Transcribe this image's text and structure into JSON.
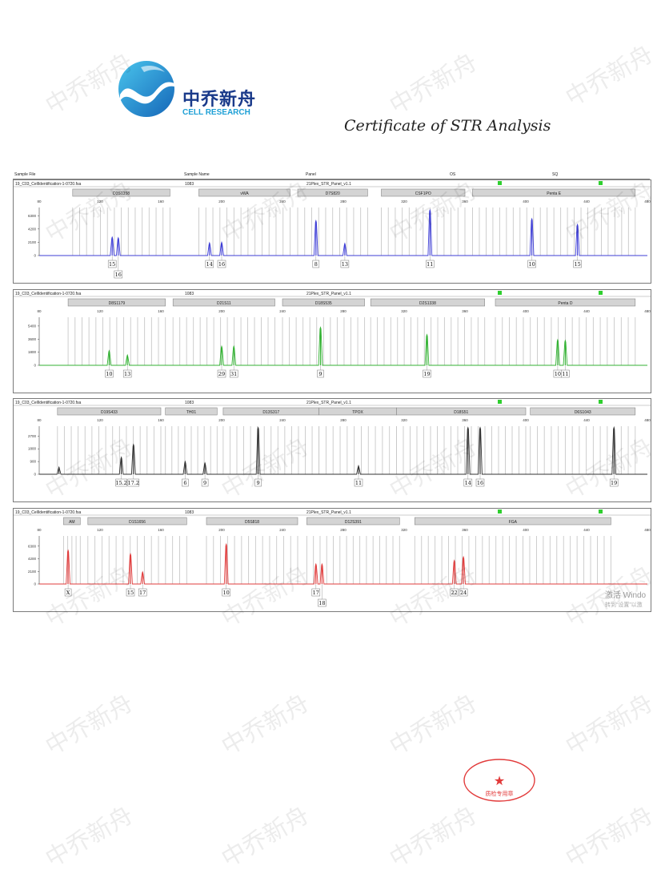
{
  "brand": {
    "name_cn": "中乔新舟",
    "name_en": "CELL RESEARCH"
  },
  "title": "Certificate of STR Analysis",
  "header": {
    "sample_file": "Sample File",
    "sample_name": "Sample Name",
    "panel": "Panel",
    "os": "OS",
    "sq": "SQ"
  },
  "watermark": "中乔新舟",
  "windows_notice": {
    "line1": "激活 Windo",
    "line2": "转到“设置”以激"
  },
  "seal_text": "质检专用章",
  "colors": {
    "blue": "#3f3fd6",
    "green": "#33b233",
    "black": "#333333",
    "red": "#e03c3c",
    "marker_gray": "#c8c8c8",
    "status_green": "#2fcf2f"
  },
  "chart_data": [
    {
      "type": "line",
      "dye": "blue",
      "sample_file": "19_C03_CellIdentification-1-0720.fsa",
      "sample_name": "1083",
      "panel": "21Plex_STR_Panel_v1.1",
      "xlim": [
        80,
        480
      ],
      "x_ticks": [
        "80",
        "120",
        "160",
        "200",
        "240",
        "280",
        "320",
        "360",
        "400",
        "440",
        "480"
      ],
      "y_ticks": [
        "0",
        "2100",
        "4200",
        "6300"
      ],
      "ylim": [
        0,
        7600
      ],
      "loci": [
        {
          "name": "D3S1358",
          "start": 102,
          "end": 166
        },
        {
          "name": "vWA",
          "start": 185,
          "end": 245
        },
        {
          "name": "D7S820",
          "start": 250,
          "end": 296
        },
        {
          "name": "CSF1PO",
          "start": 305,
          "end": 360
        },
        {
          "name": "Penta E",
          "start": 365,
          "end": 472
        }
      ],
      "peaks": [
        {
          "x": 128,
          "height": 2900,
          "alleles": [
            "15"
          ]
        },
        {
          "x": 132,
          "height": 2800,
          "alleles": [
            "16"
          ]
        },
        {
          "x": 192,
          "height": 2000,
          "alleles": [
            "14"
          ]
        },
        {
          "x": 200,
          "height": 2100,
          "alleles": [
            "16"
          ]
        },
        {
          "x": 262,
          "height": 5500,
          "alleles": [
            "8"
          ]
        },
        {
          "x": 281,
          "height": 1900,
          "alleles": [
            "13"
          ]
        },
        {
          "x": 337,
          "height": 7200,
          "alleles": [
            "11"
          ]
        },
        {
          "x": 404,
          "height": 5800,
          "alleles": [
            "10"
          ]
        },
        {
          "x": 434,
          "height": 4900,
          "alleles": [
            "15"
          ]
        }
      ]
    },
    {
      "type": "line",
      "dye": "green",
      "sample_file": "19_C03_CellIdentification-1-0720.fsa",
      "sample_name": "1083",
      "panel": "21Plex_STR_Panel_v1.1",
      "xlim": [
        80,
        480
      ],
      "x_ticks": [
        "80",
        "120",
        "160",
        "200",
        "240",
        "280",
        "320",
        "360",
        "400",
        "440",
        "480"
      ],
      "y_ticks": [
        "0",
        "1800",
        "3600",
        "5400"
      ],
      "ylim": [
        0,
        6600
      ],
      "loci": [
        {
          "name": "D8S1179",
          "start": 99,
          "end": 163
        },
        {
          "name": "D21S11",
          "start": 168,
          "end": 235
        },
        {
          "name": "D18S535",
          "start": 240,
          "end": 294
        },
        {
          "name": "D2S1338",
          "start": 298,
          "end": 373
        },
        {
          "name": "Penta D",
          "start": 380,
          "end": 472
        }
      ],
      "peaks": [
        {
          "x": 126,
          "height": 2000,
          "alleles": [
            "10"
          ]
        },
        {
          "x": 138,
          "height": 1400,
          "alleles": [
            "13"
          ]
        },
        {
          "x": 200,
          "height": 2600,
          "alleles": [
            "29"
          ]
        },
        {
          "x": 208,
          "height": 2600,
          "alleles": [
            "31"
          ]
        },
        {
          "x": 265,
          "height": 5200,
          "alleles": [
            "9"
          ]
        },
        {
          "x": 335,
          "height": 4200,
          "alleles": [
            "19"
          ]
        },
        {
          "x": 421,
          "height": 3500,
          "alleles": [
            "10"
          ]
        },
        {
          "x": 426,
          "height": 3400,
          "alleles": [
            "11"
          ]
        }
      ]
    },
    {
      "type": "line",
      "dye": "black",
      "sample_file": "19_C03_CellIdentification-1-0720.fsa",
      "sample_name": "1083",
      "panel": "21Plex_STR_Panel_v1.1",
      "xlim": [
        80,
        480
      ],
      "x_ticks": [
        "80",
        "120",
        "160",
        "200",
        "240",
        "280",
        "320",
        "360",
        "400",
        "440",
        "480"
      ],
      "y_ticks": [
        "0",
        "900",
        "1800",
        "2700"
      ],
      "ylim": [
        0,
        3400
      ],
      "loci": [
        {
          "name": "D19S433",
          "start": 92,
          "end": 160
        },
        {
          "name": "TH01",
          "start": 163,
          "end": 197
        },
        {
          "name": "D13S317",
          "start": 201,
          "end": 264
        },
        {
          "name": "TPOX",
          "start": 264,
          "end": 315
        },
        {
          "name": "D18S51",
          "start": 315,
          "end": 400
        },
        {
          "name": "D6S1043",
          "start": 403,
          "end": 472
        }
      ],
      "peaks": [
        {
          "x": 93,
          "height": 500,
          "alleles": []
        },
        {
          "x": 134,
          "height": 1200,
          "alleles": [
            "15.2"
          ]
        },
        {
          "x": 142,
          "height": 2100,
          "alleles": [
            "17.2"
          ]
        },
        {
          "x": 176,
          "height": 900,
          "alleles": [
            "6"
          ]
        },
        {
          "x": 189,
          "height": 800,
          "alleles": [
            "9"
          ]
        },
        {
          "x": 224,
          "height": 3300,
          "alleles": [
            "9"
          ]
        },
        {
          "x": 290,
          "height": 600,
          "alleles": [
            "11"
          ]
        },
        {
          "x": 362,
          "height": 3300,
          "alleles": [
            "14"
          ]
        },
        {
          "x": 370,
          "height": 3300,
          "alleles": [
            "16"
          ]
        },
        {
          "x": 458,
          "height": 3300,
          "alleles": [
            "19"
          ]
        }
      ]
    },
    {
      "type": "line",
      "dye": "red",
      "sample_file": "19_C03_CellIdentification-1-0720.fsa",
      "sample_name": "1083",
      "panel": "21Plex_STR_Panel_v1.1",
      "xlim": [
        80,
        480
      ],
      "x_ticks": [
        "80",
        "120",
        "160",
        "200",
        "240",
        "280",
        "320",
        "360",
        "400",
        "440",
        "480"
      ],
      "y_ticks": [
        "0",
        "2100",
        "4200",
        "6300"
      ],
      "ylim": [
        0,
        8000
      ],
      "loci": [
        {
          "name": "AM",
          "start": 96,
          "end": 107
        },
        {
          "name": "D1S1656",
          "start": 112,
          "end": 177
        },
        {
          "name": "D5S818",
          "start": 190,
          "end": 250
        },
        {
          "name": "D12S391",
          "start": 256,
          "end": 317
        },
        {
          "name": "FGA",
          "start": 327,
          "end": 456
        }
      ],
      "peaks": [
        {
          "x": 99,
          "height": 5600,
          "alleles": [
            "X"
          ]
        },
        {
          "x": 140,
          "height": 5000,
          "alleles": [
            "15"
          ]
        },
        {
          "x": 148,
          "height": 2000,
          "alleles": [
            "17"
          ]
        },
        {
          "x": 203,
          "height": 6600,
          "alleles": [
            "10"
          ]
        },
        {
          "x": 262,
          "height": 3300,
          "alleles": [
            "17"
          ]
        },
        {
          "x": 266,
          "height": 3300,
          "alleles": [
            "18"
          ]
        },
        {
          "x": 353,
          "height": 3900,
          "alleles": [
            "22"
          ]
        },
        {
          "x": 359,
          "height": 4500,
          "alleles": [
            "24"
          ]
        }
      ]
    }
  ]
}
